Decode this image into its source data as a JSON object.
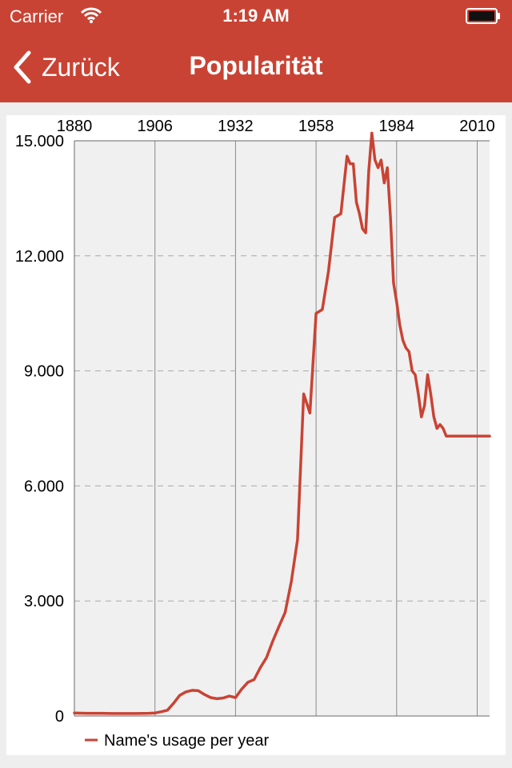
{
  "status_bar": {
    "carrier": "Carrier",
    "time": "1:19 AM",
    "wifi_icon": "wifi-icon",
    "battery_icon": "battery-icon"
  },
  "nav": {
    "back_label": "Zurück",
    "back_icon": "chevron-left-icon",
    "title": "Popularität"
  },
  "colors": {
    "accent": "#c94334",
    "plot_background": "#f0f0f0",
    "series": "#c94334"
  },
  "chart_data": {
    "type": "line",
    "title": "",
    "xlabel": "",
    "ylabel": "",
    "x_ticks": [
      "1880",
      "1906",
      "1932",
      "1958",
      "1984",
      "2010"
    ],
    "x_axis_position": "top",
    "y_ticks": [
      "0",
      "3.000",
      "6.000",
      "9.000",
      "12.000",
      "15.000"
    ],
    "xlim": [
      1880,
      2014
    ],
    "ylim": [
      0,
      15000
    ],
    "grid": true,
    "legend_position": "bottom-left",
    "series": [
      {
        "name": "Name's usage per year",
        "x": [
          1880,
          1884,
          1888,
          1892,
          1896,
          1900,
          1904,
          1906,
          1908,
          1910,
          1912,
          1914,
          1916,
          1918,
          1920,
          1922,
          1924,
          1926,
          1928,
          1930,
          1932,
          1934,
          1936,
          1938,
          1940,
          1942,
          1944,
          1946,
          1948,
          1950,
          1952,
          1954,
          1956,
          1958,
          1960,
          1962,
          1964,
          1966,
          1968,
          1969,
          1970,
          1971,
          1972,
          1973,
          1974,
          1975,
          1976,
          1977,
          1978,
          1979,
          1980,
          1981,
          1982,
          1983,
          1984,
          1985,
          1986,
          1987,
          1988,
          1989,
          1990,
          1991,
          1992,
          1993,
          1994,
          1995,
          1996,
          1997,
          1998,
          1999,
          2000,
          2001,
          2002,
          2003,
          2004,
          2005,
          2006,
          2007,
          2008,
          2009,
          2010,
          2011,
          2012,
          2013,
          2014
        ],
        "values": [
          80,
          70,
          70,
          65,
          65,
          65,
          70,
          80,
          110,
          150,
          330,
          540,
          630,
          670,
          660,
          560,
          480,
          450,
          470,
          520,
          480,
          700,
          880,
          950,
          1260,
          1520,
          1950,
          2330,
          2700,
          3500,
          4600,
          8400,
          7900,
          10500,
          10600,
          11600,
          13000,
          13100,
          14600,
          14400,
          14400,
          13400,
          13100,
          12700,
          12600,
          14200,
          15200,
          14500,
          14300,
          14500,
          13900,
          14300,
          13000,
          11300,
          10800,
          10200,
          9800,
          9600,
          9500,
          9000,
          8900,
          8400,
          7800,
          8100,
          8900,
          8400,
          7800,
          7500,
          7600,
          7500,
          7300,
          7300,
          7300,
          7300,
          7300,
          7300,
          7300,
          7300,
          7300,
          7300,
          7300,
          7300,
          7300,
          7300,
          7300
        ]
      }
    ]
  }
}
